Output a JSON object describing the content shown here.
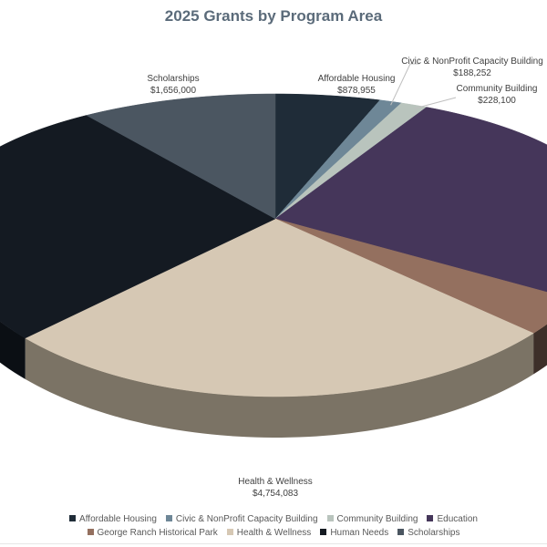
{
  "chart_data": {
    "type": "pie",
    "style": "3d",
    "title": "2025 Grants by Program Area",
    "legend_position": "bottom",
    "slices": [
      {
        "name": "Affordable Housing",
        "value": 878955,
        "label": "$878,955",
        "color": "#1f2c38",
        "side": "#141d26"
      },
      {
        "name": "Civic & NonProfit Capacity Building",
        "value": 188252,
        "label": "$188,252",
        "color": "#6e8797",
        "side": "#4c5e69"
      },
      {
        "name": "Community Building",
        "value": 228100,
        "label": "$228,100",
        "color": "#b9c4bd",
        "side": "#858d88"
      },
      {
        "name": "Education",
        "value": 4400000,
        "color": "#45365a",
        "side": "#2c2339"
      },
      {
        "name": "George Ranch Historical Park",
        "value": 630000,
        "color": "#94705f",
        "side": "#3d2f29"
      },
      {
        "name": "Health & Wellness",
        "value": 4754083,
        "label": "$4,754,083",
        "color": "#d6c8b4",
        "side": "#7b7365"
      },
      {
        "name": "Human Needs",
        "value": 4770000,
        "color": "#141a22",
        "side": "#0b0f14"
      },
      {
        "name": "Scholarships",
        "value": 1656000,
        "label": "$1,656,000",
        "color": "#4b5661",
        "side": "#323a42"
      }
    ]
  }
}
